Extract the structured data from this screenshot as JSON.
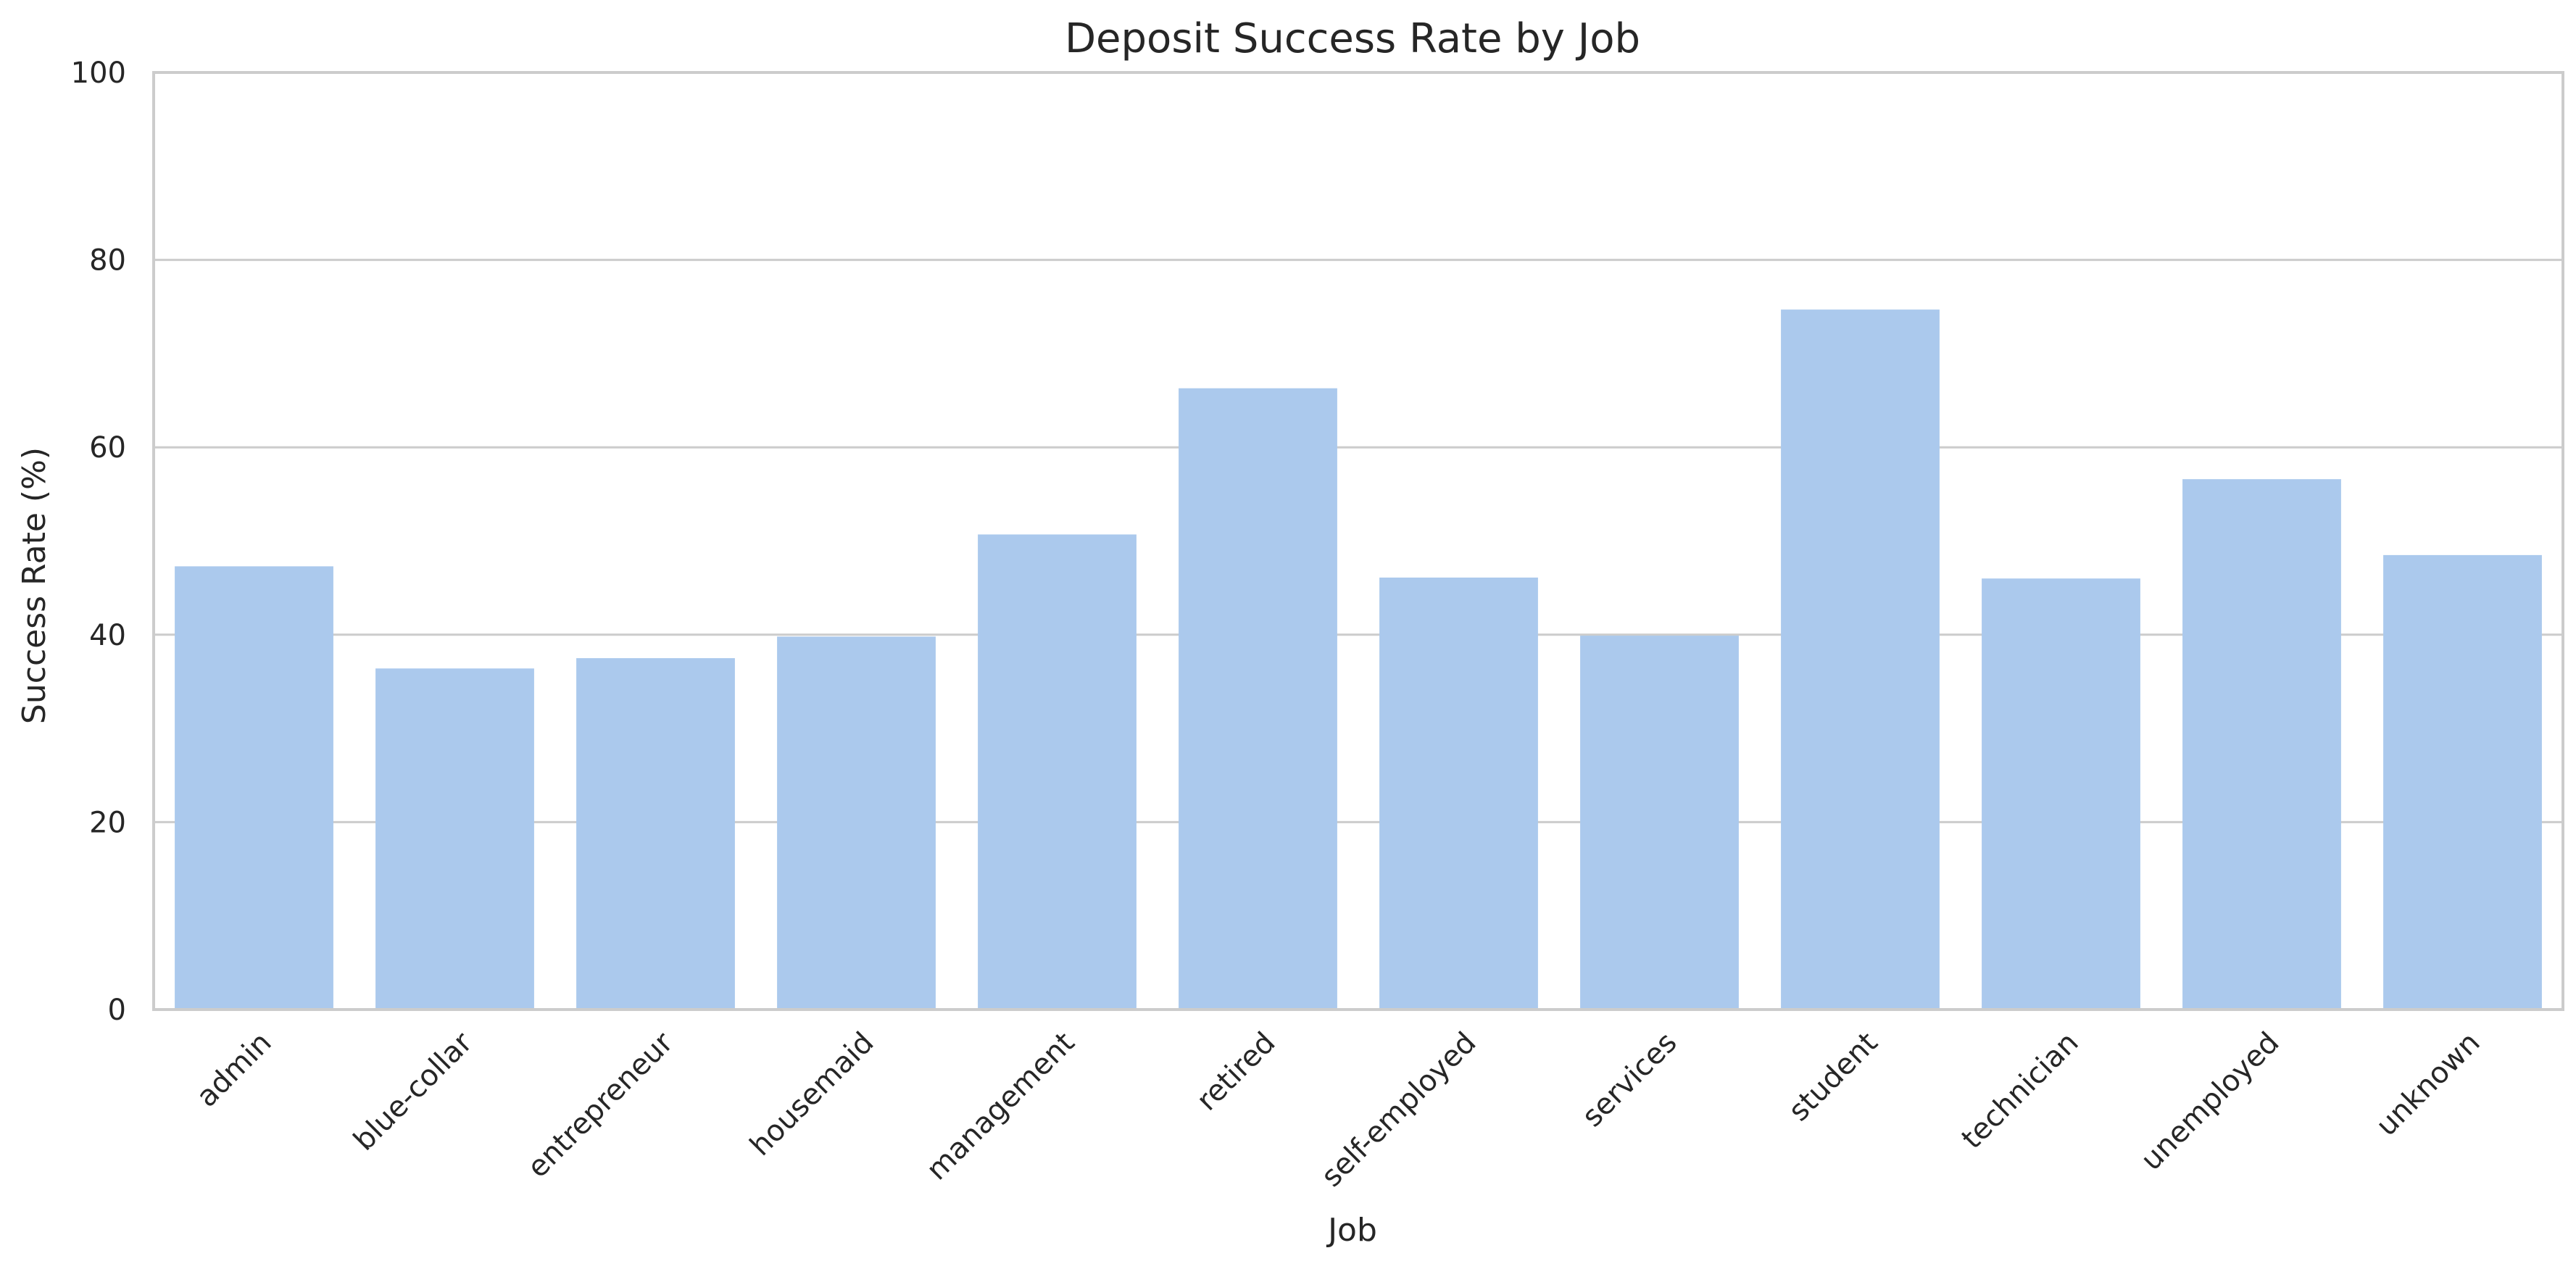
{
  "chart_data": {
    "type": "bar",
    "title": "Deposit Success Rate by Job",
    "xlabel": "Job",
    "ylabel": "Success Rate (%)",
    "ylim": [
      0,
      100
    ],
    "yticks": [
      0,
      20,
      40,
      60,
      80,
      100
    ],
    "grid": "horizontal",
    "categories": [
      "admin",
      "blue-collar",
      "entrepreneur",
      "housemaid",
      "management",
      "retired",
      "self-employed",
      "services",
      "student",
      "technician",
      "unemployed",
      "unknown"
    ],
    "values": [
      47.3,
      36.4,
      37.5,
      39.8,
      50.7,
      66.3,
      46.1,
      39.9,
      74.7,
      46.0,
      56.6,
      48.5
    ],
    "bar_color": "#abc9ed"
  }
}
